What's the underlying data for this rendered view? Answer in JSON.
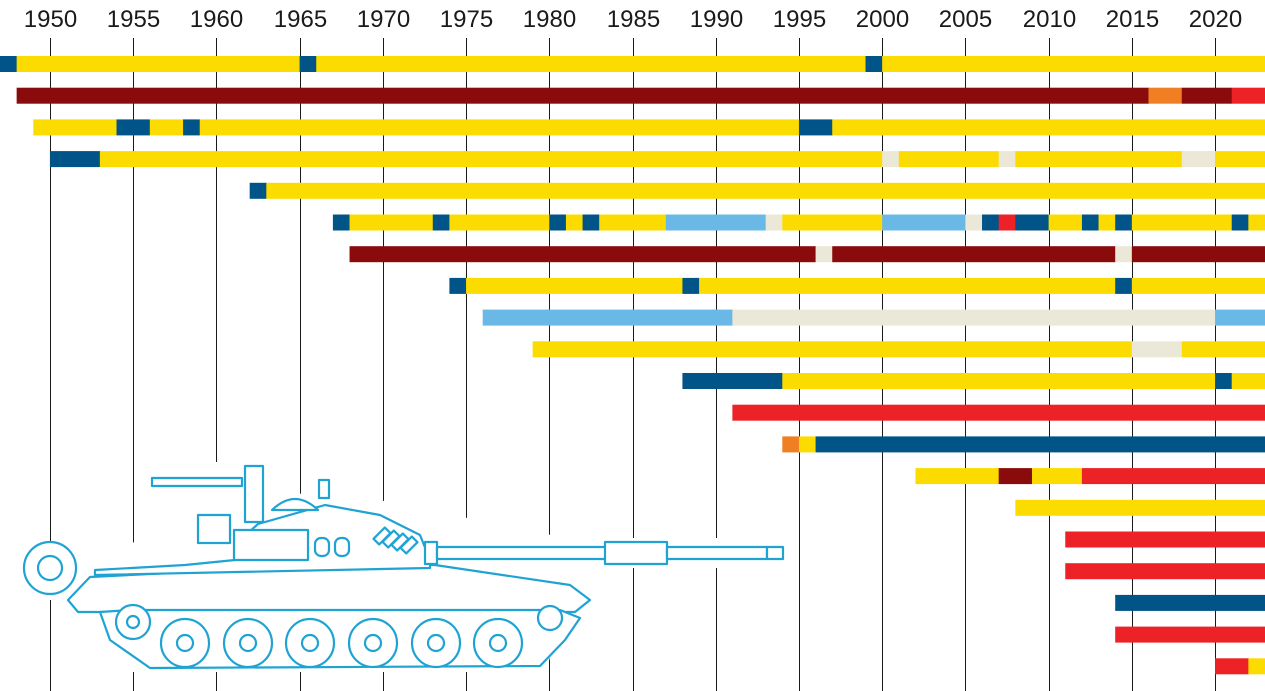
{
  "chart_data": {
    "type": "timeline",
    "title": "",
    "xlabel": "",
    "ylabel": "",
    "x_ticks": [
      1950,
      1955,
      1960,
      1965,
      1970,
      1975,
      1980,
      1985,
      1990,
      1995,
      2000,
      2005,
      2010,
      2015,
      2020
    ],
    "x_range": [
      1947,
      2023
    ],
    "grid": "vertical",
    "colors": {
      "yellow": "#fcdc00",
      "dark_red": "#8a0b0b",
      "red": "#ec2227",
      "orange": "#ef7f22",
      "navy": "#005487",
      "light_blue": "#69b8e5",
      "cream": "#ebe8d8",
      "illustration_stroke": "#1fa3d3"
    },
    "rows": [
      [
        [
          1947,
          1948,
          "navy"
        ],
        [
          1948,
          1965,
          "yellow"
        ],
        [
          1965,
          1966,
          "navy"
        ],
        [
          1966,
          1999,
          "yellow"
        ],
        [
          1999,
          2000,
          "navy"
        ],
        [
          2000,
          2023,
          "yellow"
        ]
      ],
      [
        [
          1948,
          2016,
          "dark_red"
        ],
        [
          2016,
          2018,
          "orange"
        ],
        [
          2018,
          2021,
          "dark_red"
        ],
        [
          2021,
          2023,
          "red"
        ]
      ],
      [
        [
          1949,
          1954,
          "yellow"
        ],
        [
          1954,
          1956,
          "navy"
        ],
        [
          1956,
          1958,
          "yellow"
        ],
        [
          1958,
          1959,
          "navy"
        ],
        [
          1959,
          1995,
          "yellow"
        ],
        [
          1995,
          1997,
          "navy"
        ],
        [
          1997,
          2023,
          "yellow"
        ]
      ],
      [
        [
          1950,
          1953,
          "navy"
        ],
        [
          1953,
          2000,
          "yellow"
        ],
        [
          2000,
          2001,
          "cream"
        ],
        [
          2001,
          2007,
          "yellow"
        ],
        [
          2007,
          2008,
          "cream"
        ],
        [
          2008,
          2018,
          "yellow"
        ],
        [
          2018,
          2020,
          "cream"
        ],
        [
          2020,
          2023,
          "yellow"
        ]
      ],
      [
        [
          1962,
          1963,
          "navy"
        ],
        [
          1963,
          2023,
          "yellow"
        ]
      ],
      [
        [
          1967,
          1968,
          "navy"
        ],
        [
          1968,
          1973,
          "yellow"
        ],
        [
          1973,
          1974,
          "navy"
        ],
        [
          1974,
          1980,
          "yellow"
        ],
        [
          1980,
          1981,
          "navy"
        ],
        [
          1981,
          1982,
          "yellow"
        ],
        [
          1982,
          1983,
          "navy"
        ],
        [
          1983,
          1987,
          "yellow"
        ],
        [
          1987,
          1993,
          "light_blue"
        ],
        [
          1993,
          1994,
          "cream"
        ],
        [
          1994,
          2000,
          "yellow"
        ],
        [
          2000,
          2005,
          "light_blue"
        ],
        [
          2005,
          2006,
          "cream"
        ],
        [
          2006,
          2007,
          "navy"
        ],
        [
          2007,
          2008,
          "red"
        ],
        [
          2008,
          2010,
          "navy"
        ],
        [
          2010,
          2012,
          "yellow"
        ],
        [
          2012,
          2013,
          "navy"
        ],
        [
          2013,
          2014,
          "yellow"
        ],
        [
          2014,
          2015,
          "navy"
        ],
        [
          2015,
          2021,
          "yellow"
        ],
        [
          2021,
          2022,
          "navy"
        ],
        [
          2022,
          2023,
          "yellow"
        ]
      ],
      [
        [
          1968,
          1996,
          "dark_red"
        ],
        [
          1996,
          1997,
          "cream"
        ],
        [
          1997,
          2014,
          "dark_red"
        ],
        [
          2014,
          2015,
          "cream"
        ],
        [
          2015,
          2023,
          "dark_red"
        ]
      ],
      [
        [
          1974,
          1975,
          "navy"
        ],
        [
          1975,
          1988,
          "yellow"
        ],
        [
          1988,
          1989,
          "navy"
        ],
        [
          1989,
          2014,
          "yellow"
        ],
        [
          2014,
          2015,
          "navy"
        ],
        [
          2015,
          2023,
          "yellow"
        ]
      ],
      [
        [
          1976,
          1991,
          "light_blue"
        ],
        [
          1991,
          2020,
          "cream"
        ],
        [
          2020,
          2023,
          "light_blue"
        ]
      ],
      [
        [
          1979,
          2015,
          "yellow"
        ],
        [
          2015,
          2018,
          "cream"
        ],
        [
          2018,
          2023,
          "yellow"
        ]
      ],
      [
        [
          1988,
          1994,
          "navy"
        ],
        [
          1994,
          2020,
          "yellow"
        ],
        [
          2020,
          2021,
          "navy"
        ],
        [
          2021,
          2023,
          "yellow"
        ]
      ],
      [
        [
          1991,
          2023,
          "red"
        ]
      ],
      [
        [
          1994,
          1995,
          "orange"
        ],
        [
          1995,
          1996,
          "yellow"
        ],
        [
          1996,
          2023,
          "navy"
        ]
      ],
      [
        [
          2002,
          2007,
          "yellow"
        ],
        [
          2007,
          2009,
          "dark_red"
        ],
        [
          2009,
          2012,
          "yellow"
        ],
        [
          2012,
          2023,
          "red"
        ]
      ],
      [
        [
          2008,
          2023,
          "yellow"
        ]
      ],
      [
        [
          2011,
          2023,
          "red"
        ]
      ],
      [
        [
          2011,
          2023,
          "red"
        ]
      ],
      [
        [
          2014,
          2023,
          "navy"
        ]
      ],
      [
        [
          2014,
          2023,
          "red"
        ]
      ],
      [
        [
          2020,
          2022,
          "red"
        ],
        [
          2022,
          2023,
          "yellow"
        ]
      ]
    ]
  }
}
